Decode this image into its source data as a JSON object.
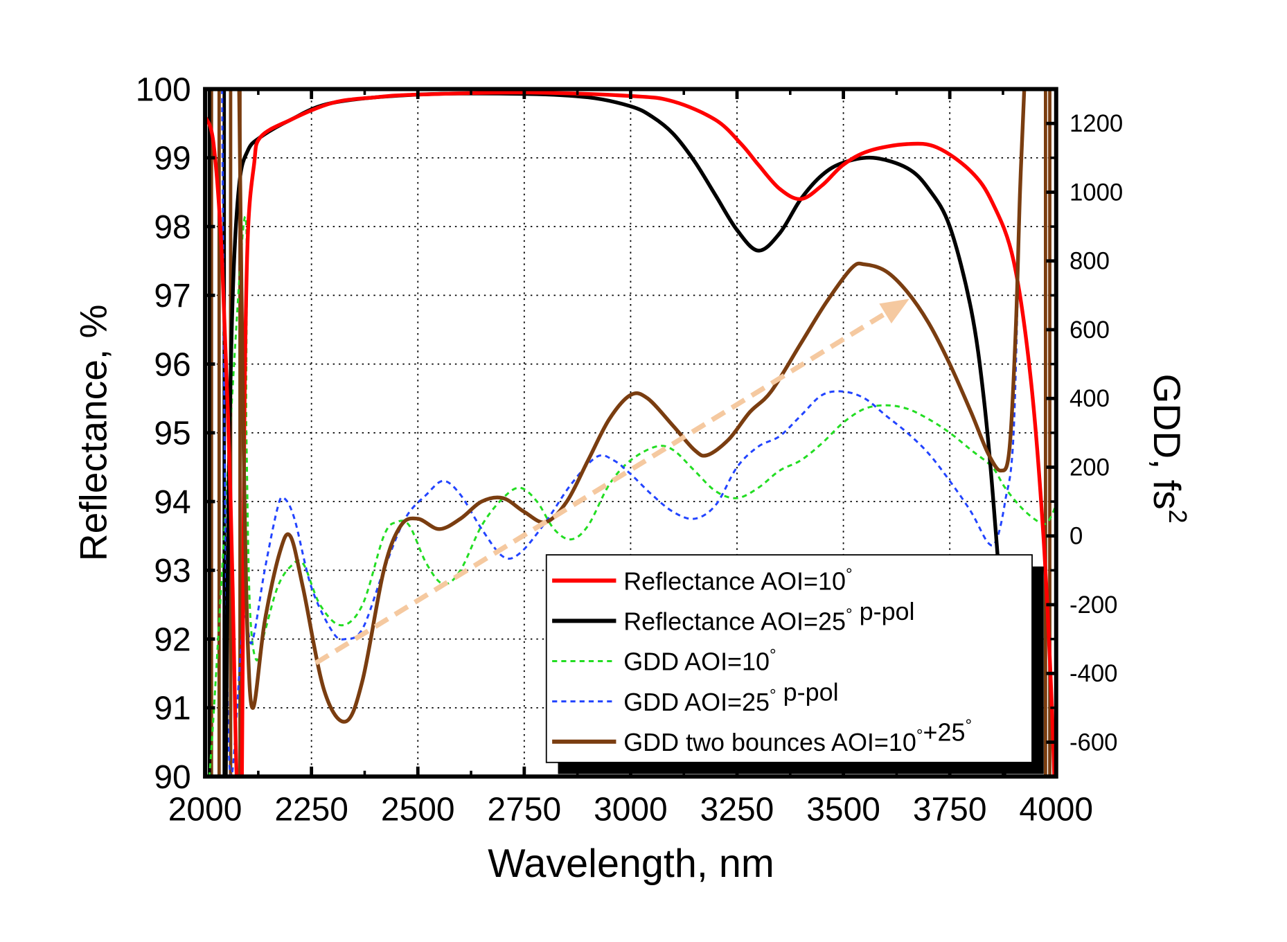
{
  "chart_data": {
    "type": "line",
    "title": "",
    "xlabel": "Wavelength, nm",
    "ylabel": "Reflectance, %",
    "y2label_main": "GDD, fs",
    "y2label_sup": "2",
    "xlim": [
      2000,
      4000
    ],
    "ylim": [
      90,
      100
    ],
    "y2lim": [
      -700,
      1300
    ],
    "xticks": [
      2000,
      2250,
      2500,
      2750,
      3000,
      3250,
      3500,
      3750,
      4000
    ],
    "yticks": [
      90,
      91,
      92,
      93,
      94,
      95,
      96,
      97,
      98,
      99,
      100
    ],
    "y2ticks": [
      -600,
      -400,
      -200,
      0,
      200,
      400,
      600,
      800,
      1000,
      1200
    ],
    "grid": true,
    "legend_position": "bottom-right",
    "series": [
      {
        "name": "Reflectance AOI=10°",
        "axis": "left",
        "color": "#ff0000",
        "dash": "solid",
        "points": [
          [
            2000,
            99.6
          ],
          [
            2020,
            99.2
          ],
          [
            2040,
            97.5
          ],
          [
            2060,
            94
          ],
          [
            2072,
            90.5
          ],
          [
            2078,
            89.5
          ],
          [
            2086,
            89.5
          ],
          [
            2092,
            95
          ],
          [
            2100,
            97.8
          ],
          [
            2115,
            98.9
          ],
          [
            2130,
            99.3
          ],
          [
            2200,
            99.55
          ],
          [
            2300,
            99.8
          ],
          [
            2400,
            99.88
          ],
          [
            2500,
            99.92
          ],
          [
            2750,
            99.95
          ],
          [
            3000,
            99.9
          ],
          [
            3100,
            99.82
          ],
          [
            3200,
            99.55
          ],
          [
            3260,
            99.2
          ],
          [
            3300,
            98.9
          ],
          [
            3350,
            98.55
          ],
          [
            3400,
            98.4
          ],
          [
            3450,
            98.6
          ],
          [
            3500,
            98.9
          ],
          [
            3560,
            99.1
          ],
          [
            3650,
            99.2
          ],
          [
            3720,
            99.15
          ],
          [
            3800,
            98.8
          ],
          [
            3850,
            98.35
          ],
          [
            3900,
            97.5
          ],
          [
            3940,
            95.8
          ],
          [
            3970,
            93.5
          ],
          [
            3990,
            91
          ],
          [
            4000,
            89
          ]
        ]
      },
      {
        "name": "Reflectance AOI=25° p-pol",
        "axis": "left",
        "color": "#000000",
        "dash": "solid",
        "points": [
          [
            2048,
            89.5
          ],
          [
            2055,
            94
          ],
          [
            2065,
            97
          ],
          [
            2080,
            98.6
          ],
          [
            2100,
            99.1
          ],
          [
            2130,
            99.3
          ],
          [
            2200,
            99.55
          ],
          [
            2300,
            99.8
          ],
          [
            2500,
            99.92
          ],
          [
            2750,
            99.93
          ],
          [
            2900,
            99.88
          ],
          [
            3000,
            99.75
          ],
          [
            3050,
            99.6
          ],
          [
            3100,
            99.35
          ],
          [
            3150,
            98.95
          ],
          [
            3200,
            98.45
          ],
          [
            3250,
            97.95
          ],
          [
            3300,
            97.65
          ],
          [
            3350,
            97.9
          ],
          [
            3400,
            98.4
          ],
          [
            3450,
            98.75
          ],
          [
            3500,
            98.93
          ],
          [
            3570,
            99.0
          ],
          [
            3650,
            98.85
          ],
          [
            3700,
            98.55
          ],
          [
            3750,
            98.0
          ],
          [
            3800,
            96.8
          ],
          [
            3830,
            95.5
          ],
          [
            3855,
            93.8
          ],
          [
            3870,
            92.3
          ],
          [
            3880,
            89.5
          ]
        ]
      },
      {
        "name": "GDD AOI=10°",
        "axis": "right",
        "color": "#22dd22",
        "dash": "dashed",
        "points": [
          [
            2000,
            -420
          ],
          [
            2010,
            -700
          ],
          [
            2090,
            900
          ],
          [
            2097,
            300
          ],
          [
            2105,
            -200
          ],
          [
            2120,
            -360
          ],
          [
            2140,
            -280
          ],
          [
            2170,
            -150
          ],
          [
            2200,
            -90
          ],
          [
            2230,
            -80
          ],
          [
            2270,
            -200
          ],
          [
            2320,
            -260
          ],
          [
            2370,
            -200
          ],
          [
            2420,
            0
          ],
          [
            2450,
            40
          ],
          [
            2480,
            30
          ],
          [
            2520,
            -80
          ],
          [
            2560,
            -140
          ],
          [
            2600,
            -100
          ],
          [
            2650,
            30
          ],
          [
            2700,
            110
          ],
          [
            2740,
            140
          ],
          [
            2780,
            100
          ],
          [
            2820,
            20
          ],
          [
            2860,
            -10
          ],
          [
            2900,
            30
          ],
          [
            2950,
            150
          ],
          [
            3000,
            220
          ],
          [
            3060,
            260
          ],
          [
            3100,
            250
          ],
          [
            3150,
            190
          ],
          [
            3200,
            130
          ],
          [
            3250,
            110
          ],
          [
            3300,
            140
          ],
          [
            3350,
            190
          ],
          [
            3400,
            220
          ],
          [
            3450,
            270
          ],
          [
            3500,
            330
          ],
          [
            3550,
            370
          ],
          [
            3600,
            380
          ],
          [
            3650,
            370
          ],
          [
            3700,
            340
          ],
          [
            3750,
            300
          ],
          [
            3800,
            250
          ],
          [
            3850,
            200
          ],
          [
            3880,
            140
          ],
          [
            3920,
            80
          ],
          [
            3960,
            40
          ],
          [
            3980,
            40
          ],
          [
            4000,
            90
          ]
        ]
      },
      {
        "name": "GDD AOI=25° p-pol",
        "axis": "right",
        "color": "#2244ff",
        "dash": "dashed",
        "points": [
          [
            2040,
            1300
          ],
          [
            2048,
            0
          ],
          [
            2060,
            -700
          ],
          [
            2090,
            -250
          ],
          [
            2110,
            -310
          ],
          [
            2140,
            -100
          ],
          [
            2170,
            80
          ],
          [
            2185,
            110
          ],
          [
            2210,
            50
          ],
          [
            2250,
            -150
          ],
          [
            2300,
            -280
          ],
          [
            2330,
            -300
          ],
          [
            2370,
            -270
          ],
          [
            2420,
            -100
          ],
          [
            2470,
            50
          ],
          [
            2520,
            120
          ],
          [
            2560,
            160
          ],
          [
            2600,
            120
          ],
          [
            2650,
            20
          ],
          [
            2700,
            -60
          ],
          [
            2740,
            -50
          ],
          [
            2800,
            40
          ],
          [
            2860,
            150
          ],
          [
            2920,
            230
          ],
          [
            2960,
            220
          ],
          [
            3000,
            180
          ],
          [
            3050,
            120
          ],
          [
            3100,
            70
          ],
          [
            3150,
            50
          ],
          [
            3200,
            90
          ],
          [
            3250,
            200
          ],
          [
            3300,
            260
          ],
          [
            3350,
            290
          ],
          [
            3400,
            350
          ],
          [
            3450,
            410
          ],
          [
            3500,
            420
          ],
          [
            3550,
            400
          ],
          [
            3600,
            350
          ],
          [
            3650,
            300
          ],
          [
            3700,
            240
          ],
          [
            3750,
            160
          ],
          [
            3800,
            70
          ],
          [
            3840,
            -20
          ],
          [
            3860,
            -10
          ],
          [
            3880,
            100
          ],
          [
            3900,
            300
          ],
          [
            3915,
            1000
          ]
        ]
      },
      {
        "name": "GDD two bounces AOI=10°+25°",
        "axis": "right",
        "color": "#7a3d10",
        "dash": "solid",
        "points": [
          [
            2080,
            1300
          ],
          [
            2090,
            300
          ],
          [
            2100,
            -300
          ],
          [
            2113,
            -500
          ],
          [
            2140,
            -250
          ],
          [
            2175,
            -50
          ],
          [
            2200,
            0
          ],
          [
            2230,
            -150
          ],
          [
            2280,
            -450
          ],
          [
            2330,
            -540
          ],
          [
            2370,
            -420
          ],
          [
            2420,
            -100
          ],
          [
            2460,
            30
          ],
          [
            2500,
            50
          ],
          [
            2550,
            20
          ],
          [
            2600,
            50
          ],
          [
            2650,
            100
          ],
          [
            2700,
            110
          ],
          [
            2750,
            70
          ],
          [
            2800,
            40
          ],
          [
            2850,
            100
          ],
          [
            2900,
            220
          ],
          [
            2950,
            340
          ],
          [
            3000,
            410
          ],
          [
            3040,
            400
          ],
          [
            3100,
            320
          ],
          [
            3150,
            250
          ],
          [
            3180,
            235
          ],
          [
            3230,
            280
          ],
          [
            3280,
            360
          ],
          [
            3330,
            420
          ],
          [
            3400,
            560
          ],
          [
            3460,
            680
          ],
          [
            3520,
            780
          ],
          [
            3550,
            790
          ],
          [
            3600,
            770
          ],
          [
            3650,
            710
          ],
          [
            3700,
            620
          ],
          [
            3750,
            500
          ],
          [
            3800,
            360
          ],
          [
            3840,
            240
          ],
          [
            3870,
            190
          ],
          [
            3890,
            250
          ],
          [
            3905,
            600
          ],
          [
            3915,
            1000
          ],
          [
            3925,
            1300
          ]
        ]
      }
    ],
    "spikes": [
      {
        "axis": "right",
        "color": "#7a3d10",
        "x": [
          2015,
          2033,
          2060,
          2082,
          3975,
          3985
        ]
      },
      {
        "axis": "right",
        "color": "#000000",
        "x": [
          2010,
          2045
        ]
      }
    ],
    "annotations": [
      {
        "type": "arrow",
        "color": "#f5c9a0",
        "from": [
          2260,
          -370
        ],
        "to": [
          3655,
          690
        ],
        "axis": "right"
      }
    ]
  }
}
